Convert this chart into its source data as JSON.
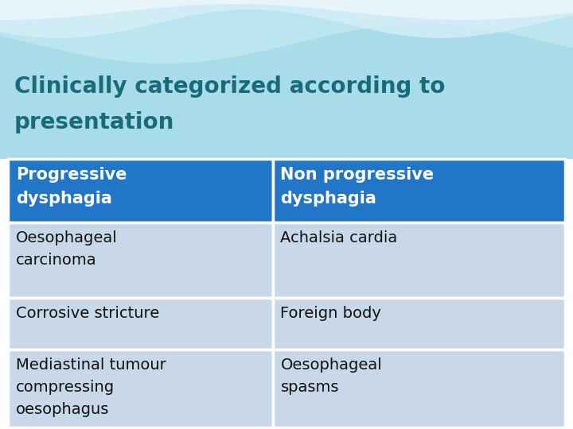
{
  "title_line1": "Clinically categorized according to",
  "title_line2": "presentation",
  "title_color": "#1a6b7a",
  "title_fontsize": 20,
  "header_bg": "#2176c7",
  "header_text_color": "#ffffff",
  "row_bg": "#c8d8e8",
  "cell_text_color": "#111111",
  "col1_header": "Progressive\ndysphagia",
  "col2_header": "Non progressive\ndysphagia",
  "rows": [
    [
      "Oesophageal\ncarcinoma",
      "Achalsia cardia"
    ],
    [
      "Corrosive stricture",
      "Foreign body"
    ],
    [
      "Mediastinal tumour\ncompressing\noesophagus",
      "Oesophageal\nspasms"
    ]
  ],
  "header_fontsize": 15,
  "cell_fontsize": 14,
  "wave_bg_color": "#a8dce8",
  "wave1_color": "#c0e8f2",
  "wave2_color": "#daf0f8",
  "wave3_color": "#eef8fc",
  "white_color": "#ffffff",
  "col_split": 0.475
}
